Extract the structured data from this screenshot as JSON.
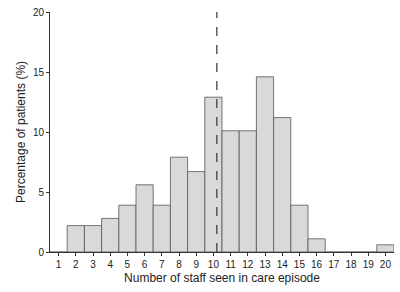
{
  "chart_data": {
    "type": "histogram",
    "x_label": "Number of staff seen in care episode",
    "y_label": "Percentage of patients (%)",
    "bins": [
      0.5,
      1.5,
      2.5,
      3.5,
      4.5,
      5.5,
      6.5,
      7.5,
      8.5,
      9.5,
      10.5,
      11.5,
      12.5,
      13.5,
      14.5,
      15.5,
      16.5,
      17.5,
      18.5,
      19.5,
      20.5
    ],
    "values": [
      0,
      2.2,
      2.2,
      2.8,
      3.9,
      5.6,
      3.9,
      7.9,
      6.7,
      12.9,
      10.1,
      10.1,
      14.6,
      11.2,
      3.9,
      1.1,
      0,
      0,
      0,
      0.6
    ],
    "color": "#d9d9d9",
    "xlim": [
      0.5,
      20.5
    ],
    "xticks": [
      1,
      2,
      3,
      4,
      5,
      6,
      7,
      8,
      9,
      10,
      11,
      12,
      13,
      14,
      15,
      16,
      17,
      18,
      19,
      20
    ],
    "ylim": [
      0,
      20
    ],
    "yticks": [
      0,
      5,
      10,
      15,
      20
    ],
    "grid": false,
    "vline": {
      "x": 10.2,
      "line_style": "dashed"
    }
  }
}
